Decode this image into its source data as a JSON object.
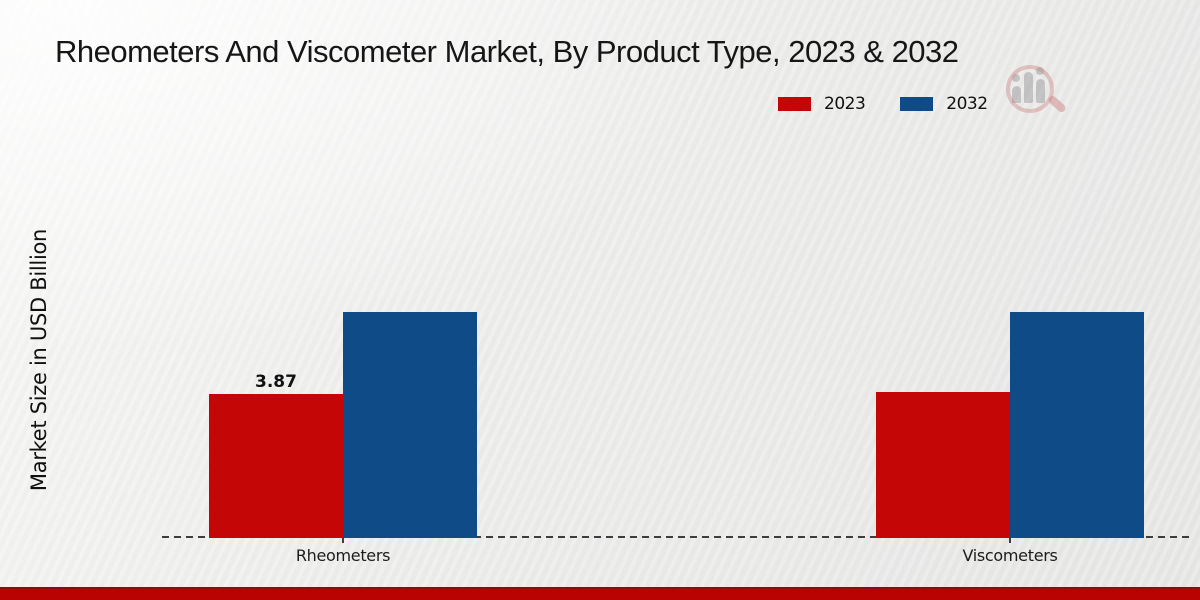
{
  "title": "Rheometers And Viscometer Market, By Product Type, 2023 & 2032",
  "legend": {
    "items": [
      {
        "label": "2023",
        "color": "#c40606"
      },
      {
        "label": "2032",
        "color": "#0f4c87"
      }
    ]
  },
  "chart_data": {
    "type": "bar",
    "title": "Rheometers And Viscometer Market, By Product Type, 2023 & 2032",
    "categories": [
      "Rheometers",
      "Viscometers"
    ],
    "series": [
      {
        "name": "2023",
        "color": "#c40606",
        "values": [
          3.87,
          3.93
        ]
      },
      {
        "name": "2032",
        "color": "#0f4c87",
        "values": [
          6.1,
          6.1
        ]
      }
    ],
    "xlabel": "",
    "ylabel": "Market Size in USD Billion",
    "ylim": [
      0,
      6.5
    ],
    "grid": false,
    "legend_position": "top-right",
    "baseline_style": "dashed",
    "data_labels": [
      {
        "series": "2023",
        "category": "Rheometers",
        "text": "3.87"
      }
    ]
  },
  "theme": {
    "background": "#ebebea",
    "text": "#161616",
    "baseline": "#3d3d3d",
    "footer_bar": "#b90303",
    "watermark_ring": "#c97a7a",
    "watermark_bars": "#969696"
  },
  "watermark": {
    "icon": "magnifier-bar-chart-logo"
  }
}
